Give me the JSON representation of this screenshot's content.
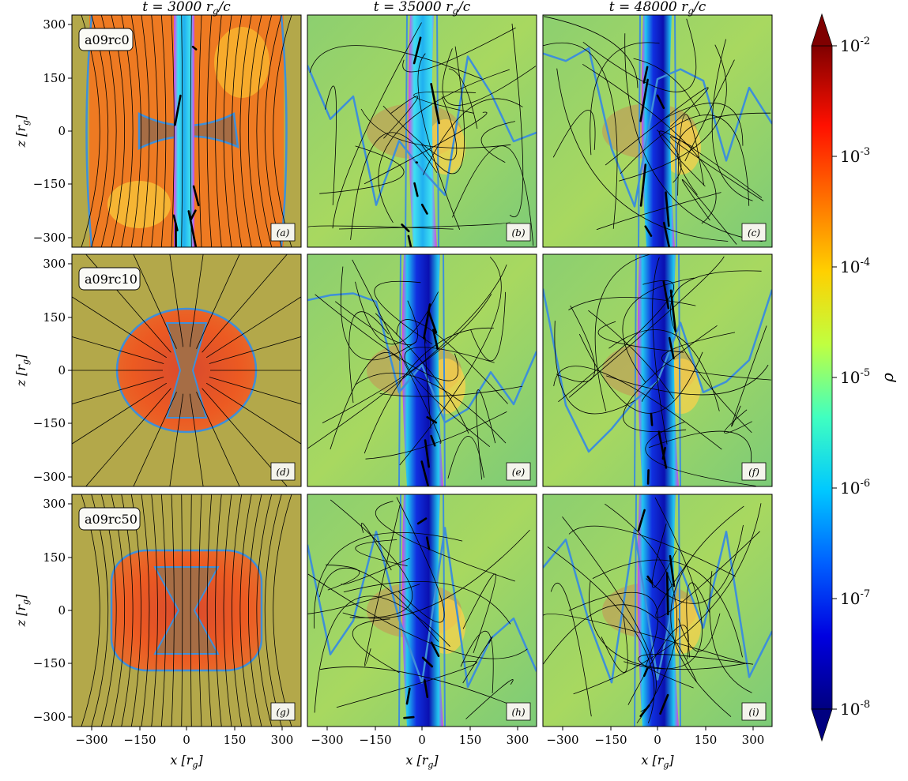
{
  "figure": {
    "columns": [
      {
        "time_label": "t = 3000 r",
        "sub": "g",
        "tail": "/c"
      },
      {
        "time_label": "t = 35000 r",
        "sub": "g",
        "tail": "/c"
      },
      {
        "time_label": "t = 48000 r",
        "sub": "g",
        "tail": "/c"
      }
    ],
    "rows": [
      {
        "model": "a09rc0"
      },
      {
        "model": "a09rc10"
      },
      {
        "model": "a09rc50"
      }
    ],
    "panel_labels": [
      "(a)",
      "(b)",
      "(c)",
      "(d)",
      "(e)",
      "(f)",
      "(g)",
      "(h)",
      "(i)"
    ],
    "ylabel": {
      "main": "z [r",
      "sub": "g",
      "tail": "]"
    },
    "xlabel": {
      "main": "x [r",
      "sub": "g",
      "tail": "]"
    },
    "y_ticks": [
      "300",
      "150",
      "0",
      "−150",
      "−300"
    ],
    "x_ticks": [
      "−300",
      "−150",
      "0",
      "150",
      "300"
    ],
    "colorbar": {
      "label": "ρ",
      "ticks": [
        {
          "base": "10",
          "exp": "-2"
        },
        {
          "base": "10",
          "exp": "-3"
        },
        {
          "base": "10",
          "exp": "-4"
        },
        {
          "base": "10",
          "exp": "-5"
        },
        {
          "base": "10",
          "exp": "-6"
        },
        {
          "base": "10",
          "exp": "-7"
        },
        {
          "base": "10",
          "exp": "-8"
        }
      ],
      "colors": [
        "#7f0000",
        "#ff2a00",
        "#ffb300",
        "#c8ff37",
        "#00e1f0",
        "#0055ff",
        "#000080"
      ]
    },
    "colors": {
      "contour": "#3e8fd9",
      "jet_edge": "#e040e0",
      "torus": "#e25b27",
      "funnel": "#a66d45",
      "ambient_dense": "#b3a84a",
      "ambient_mid": "#c8e060",
      "jet_core": "#1010c8"
    }
  }
}
